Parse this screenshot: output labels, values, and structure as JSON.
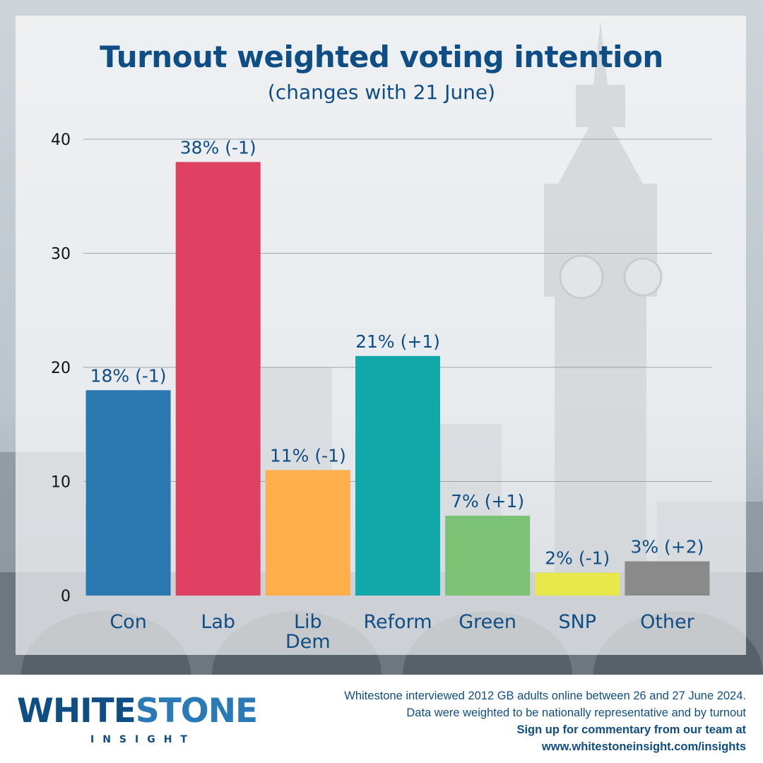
{
  "title": "Turnout weighted voting intention",
  "subtitle": "(changes with 21 June)",
  "chart_data": {
    "type": "bar",
    "categories": [
      [
        "Con"
      ],
      [
        "Lab"
      ],
      [
        "Lib",
        "Dem"
      ],
      [
        "Reform"
      ],
      [
        "Green"
      ],
      [
        "SNP"
      ],
      [
        "Other"
      ]
    ],
    "values": [
      18,
      38,
      11,
      21,
      7,
      2,
      3
    ],
    "data_labels": [
      "18% (-1)",
      "38% (-1)",
      "11% (-1)",
      "21% (+1)",
      "7% (+1)",
      "2% (-1)",
      "3% (+2)"
    ],
    "colors": [
      "#2b78b0",
      "#de4162",
      "#ffae4c",
      "#12a8aa",
      "#7bc274",
      "#e8e84a",
      "#8a8a8a"
    ],
    "ylim": [
      0,
      40
    ],
    "yticks": [
      0,
      10,
      20,
      30,
      40
    ],
    "grid": true,
    "xlabel": "",
    "ylabel": ""
  },
  "footer": {
    "logo_main_a": "WHITE",
    "logo_main_b": "STONE",
    "logo_sub": "INSIGHT",
    "lines": [
      "Whitestone interviewed 2012 GB adults online between 26 and 27 June 2024.",
      "Data were weighted to be nationally representative and by turnout"
    ],
    "cta": "Sign up for commentary from our team at",
    "url": "www.whitestoneinsight.com/insights"
  }
}
